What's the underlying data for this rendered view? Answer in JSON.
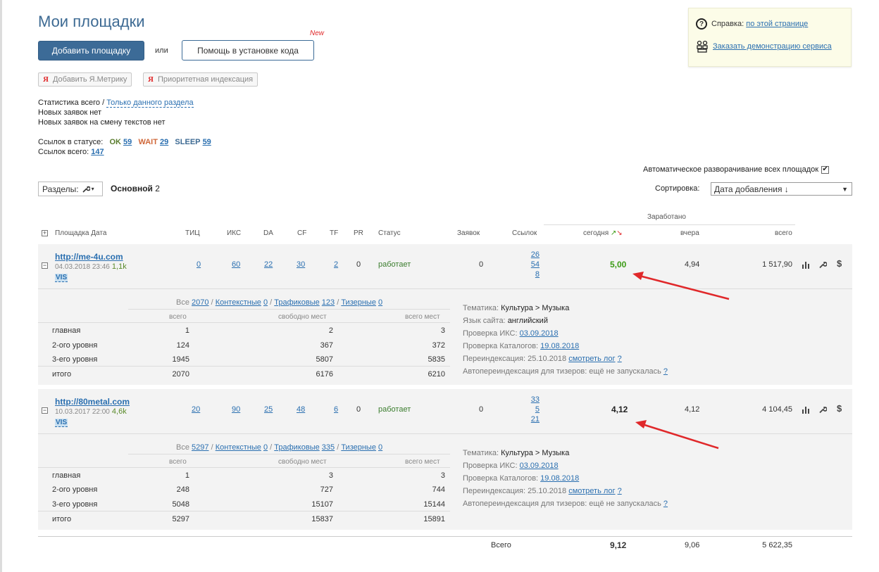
{
  "page": {
    "title": "Мои площадки",
    "add_site": "Добавить площадку",
    "or": "или",
    "help_install": "Помощь в установке кода",
    "new_badge": "New",
    "ya_metrika": "Добавить Я.Метрику",
    "priority_index": "Приоритетная индексация",
    "ya_letter": "Я"
  },
  "help": {
    "label": "Справка:",
    "this_page": "по этой странице",
    "demo": "Заказать демонстрацию сервиса",
    "q_icon": "?"
  },
  "stats": {
    "total_prefix": "Статистика всего /",
    "section_only": "Только данного раздела",
    "no_new": "Новых заявок нет",
    "no_text_change": "Новых заявок на смену текстов нет",
    "links_status_label": "Ссылок в статусе:",
    "ok_label": "OK",
    "ok_count": "59",
    "wait_label": "WAIT",
    "wait_count": "29",
    "sleep_label": "SLEEP",
    "sleep_count": "59",
    "links_total_label": "Ссылок всего:",
    "links_total": "147"
  },
  "controls": {
    "auto_expand": "Автоматическое разворачивание всех площадок",
    "auto_expand_checked": "✔",
    "sections_label": "Разделы:",
    "main_section": "Основной",
    "main_section_count": "2",
    "sort_label": "Сортировка:",
    "sort_value": "Дата добавления ↓",
    "sort_arrow": "▼"
  },
  "table_headers": {
    "site_date": "Площадка Дата",
    "tic": "ТИЦ",
    "iks": "ИКС",
    "da": "DA",
    "cf": "CF",
    "tf": "TF",
    "pr": "PR",
    "status": "Статус",
    "requests": "Заявок",
    "links": "Ссылок",
    "earned": "Заработано",
    "today": "сегодня",
    "yesterday": "вчера",
    "total": "всего",
    "expand_icon": "+"
  },
  "sites": [
    {
      "url": "http://me-4u.com",
      "date": "04.03.2018 23:46",
      "traffic": "1,1k",
      "vis": "VIS",
      "tic": "0",
      "iks": "60",
      "da": "22",
      "cf": "30",
      "tf": "2",
      "pr": "0",
      "status": "работает",
      "requests": "0",
      "links": [
        "26",
        "54",
        "8"
      ],
      "today": "5,00",
      "yesterday": "4,94",
      "total": "1 517,90",
      "tabs": {
        "all_label": "Все",
        "all": "2070",
        "context_label": "Контекстные",
        "context": "0",
        "traffic_label": "Трафиковые",
        "traffic": "123",
        "teaser_label": "Тизерные",
        "teaser": "0"
      },
      "sub_headers": {
        "all": "всего",
        "free": "свободно мест",
        "all_places": "всего мест"
      },
      "rows": [
        {
          "name": "главная",
          "all": "1",
          "free": "2",
          "places": "3"
        },
        {
          "name": "2-ого уровня",
          "all": "124",
          "free": "367",
          "places": "372"
        },
        {
          "name": "3-его уровня",
          "all": "1945",
          "free": "5807",
          "places": "5835"
        },
        {
          "name": "итого",
          "all": "2070",
          "free": "6176",
          "places": "6210"
        }
      ],
      "info": {
        "theme_label": "Тематика:",
        "theme": "Культура > Музыка",
        "lang_label": "Язык сайта:",
        "lang": "английский",
        "iks_check_label": "Проверка ИКС:",
        "iks_check": "03.09.2018",
        "cat_check_label": "Проверка Каталогов:",
        "cat_check": "19.08.2018",
        "reindex_label": "Переиндексация: 25.10.2018",
        "reindex_log": "смотреть лог",
        "q": "?",
        "auto_reindex_label": "Автопереиндексация для тизеров: ещё не запускалась"
      }
    },
    {
      "url": "http://80metal.com",
      "date": "10.03.2017 22:00",
      "traffic": "4,6k",
      "vis": "VIS",
      "tic": "20",
      "iks": "90",
      "da": "25",
      "cf": "48",
      "tf": "6",
      "pr": "0",
      "status": "работает",
      "requests": "0",
      "links": [
        "33",
        "5",
        "21"
      ],
      "today": "4,12",
      "yesterday": "4,12",
      "total": "4 104,45",
      "tabs": {
        "all_label": "Все",
        "all": "5297",
        "context_label": "Контекстные",
        "context": "0",
        "traffic_label": "Трафиковые",
        "traffic": "335",
        "teaser_label": "Тизерные",
        "teaser": "0"
      },
      "sub_headers": {
        "all": "всего",
        "free": "свободно мест",
        "all_places": "всего мест"
      },
      "rows": [
        {
          "name": "главная",
          "all": "1",
          "free": "3",
          "places": "3"
        },
        {
          "name": "2-ого уровня",
          "all": "248",
          "free": "727",
          "places": "744"
        },
        {
          "name": "3-его уровня",
          "all": "5048",
          "free": "15107",
          "places": "15144"
        },
        {
          "name": "итого",
          "all": "5297",
          "free": "15837",
          "places": "15891"
        }
      ],
      "info": {
        "theme_label": "Тематика:",
        "theme": "Культура > Музыка",
        "iks_check_label": "Проверка ИКС:",
        "iks_check": "03.09.2018",
        "cat_check_label": "Проверка Каталогов:",
        "cat_check": "19.08.2018",
        "reindex_label": "Переиндексация: 25.10.2018",
        "reindex_log": "смотреть лог",
        "q": "?",
        "auto_reindex_label": "Автопереиндексация для тизеров: ещё не запускалась"
      }
    }
  ],
  "totals": {
    "label": "Всего",
    "today": "9,12",
    "yesterday": "9,06",
    "total": "5 622,35"
  },
  "colors": {
    "accent": "#3c6b97",
    "annotation_arrow": "#e0282a"
  },
  "icons": {
    "minus": "−",
    "dollar": "$"
  }
}
